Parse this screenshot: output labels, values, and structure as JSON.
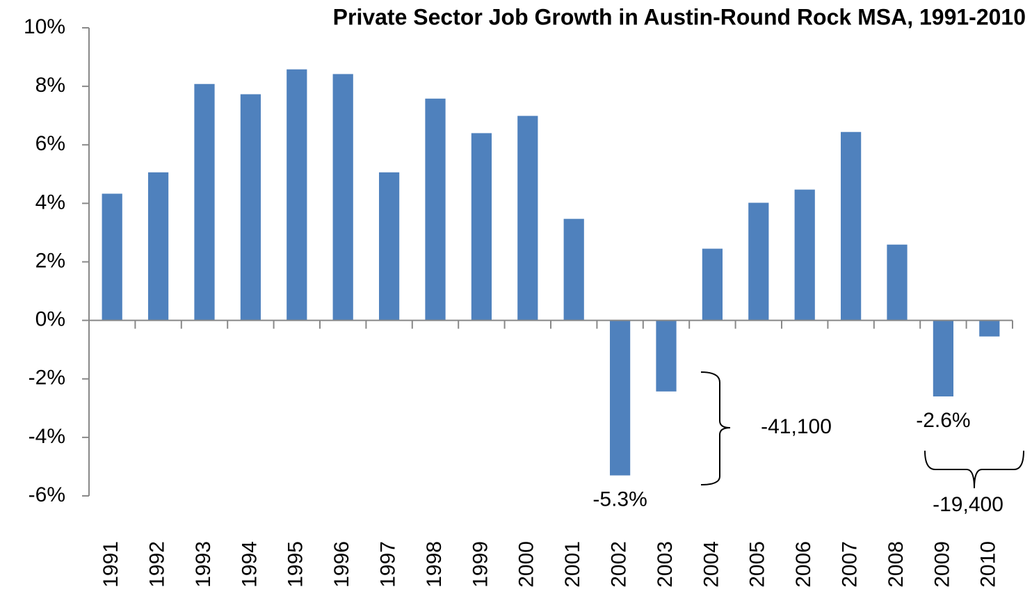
{
  "chart_data": {
    "type": "bar",
    "title": "Private Sector Job Growth in Austin-Round Rock MSA, 1991-2010",
    "categories": [
      "1991",
      "1992",
      "1993",
      "1994",
      "1995",
      "1996",
      "1997",
      "1998",
      "1999",
      "2000",
      "2001",
      "2002",
      "2003",
      "2004",
      "2005",
      "2006",
      "2007",
      "2008",
      "2009",
      "2010"
    ],
    "values": [
      4.33,
      5.06,
      8.08,
      7.73,
      8.58,
      8.42,
      5.06,
      7.58,
      6.4,
      6.99,
      3.47,
      -5.3,
      -2.43,
      2.45,
      4.02,
      4.47,
      6.44,
      2.59,
      -2.6,
      -0.55
    ],
    "value_labels": [
      null,
      null,
      null,
      null,
      null,
      null,
      null,
      null,
      null,
      null,
      null,
      "-5.3%",
      null,
      null,
      null,
      null,
      null,
      null,
      "-2.6%",
      null
    ],
    "color": "#4f81bd",
    "ylim": [
      -6,
      10
    ],
    "yticks": [
      {
        "value": -6,
        "label": "-6%"
      },
      {
        "value": -4,
        "label": "-4%"
      },
      {
        "value": -2,
        "label": "-2%"
      },
      {
        "value": 0,
        "label": "0%"
      },
      {
        "value": 2,
        "label": "2%"
      },
      {
        "value": 4,
        "label": "4%"
      },
      {
        "value": 6,
        "label": "6%"
      },
      {
        "value": 8,
        "label": "8%"
      },
      {
        "value": 10,
        "label": "10%"
      }
    ],
    "annotations": [
      "-41,100",
      "-19,400"
    ],
    "grid": false
  }
}
